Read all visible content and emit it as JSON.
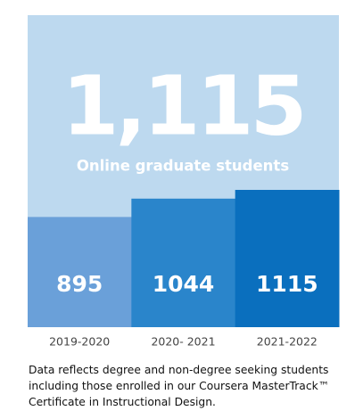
{
  "chart_data": {
    "type": "bar",
    "title": "1,115",
    "subtitle": "Online graduate students",
    "categories": [
      "2019-2020",
      "2020- 2021",
      "2021-2022"
    ],
    "values": [
      895,
      1044,
      1115
    ],
    "colors": [
      "#6aa0d9",
      "#2a85cb",
      "#0a6fbe"
    ],
    "background": "#bdd9ef",
    "note": "Data reflects degree and non-degree seeking students including those enrolled in our Coursera MasterTrack™ Certificate in Instructional Design."
  }
}
